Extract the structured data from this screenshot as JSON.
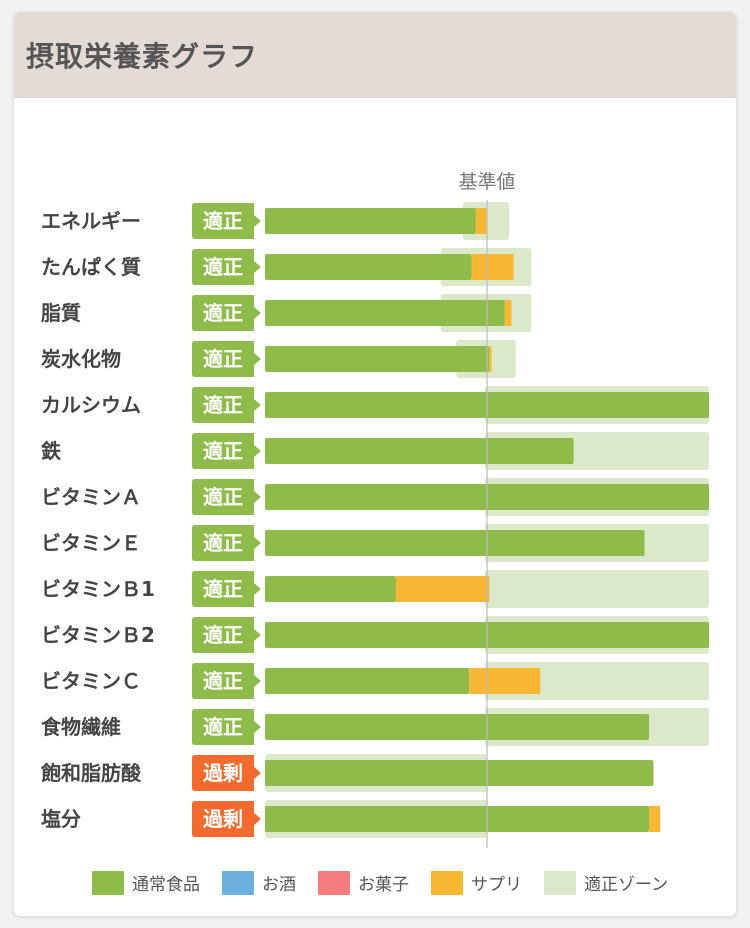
{
  "title": "摂取栄養素グラフ",
  "colors": {
    "normal": "#8fbb4a",
    "alcohol": "#6cb0e0",
    "snack": "#f47c7c",
    "supplement": "#f7b733",
    "zone": "#dbe8c9",
    "ok_badge": "#8fbb4a",
    "over_badge": "#f26a2e",
    "ref_line": "#bbbbbb"
  },
  "legend": [
    {
      "label": "通常食品",
      "color": "#8fbb4a"
    },
    {
      "label": "お酒",
      "color": "#6cb0e0"
    },
    {
      "label": "お菓子",
      "color": "#f47c7c"
    },
    {
      "label": "サプリ",
      "color": "#f7b733"
    },
    {
      "label": "適正ゾーン",
      "color": "#dbe8c9"
    }
  ],
  "chart_data": {
    "type": "bar",
    "orientation": "horizontal",
    "stacked": true,
    "reference_label": "基準値",
    "reference_value": 100,
    "x_max": 200,
    "categories": [
      "エネルギー",
      "たんぱく質",
      "脂質",
      "炭水化物",
      "カルシウム",
      "鉄",
      "ビタミンＡ",
      "ビタミンＥ",
      "ビタミンＢ1",
      "ビタミンＢ2",
      "ビタミンＣ",
      "食物繊維",
      "飽和脂肪酸",
      "塩分"
    ],
    "status": [
      "適正",
      "適正",
      "適正",
      "適正",
      "適正",
      "適正",
      "適正",
      "適正",
      "適正",
      "適正",
      "適正",
      "適正",
      "過剰",
      "過剰"
    ],
    "series": [
      {
        "name": "通常食品",
        "values": [
          95,
          93,
          108,
          101,
          200,
          139,
          200,
          171,
          59,
          200,
          92,
          173,
          175,
          173
        ]
      },
      {
        "name": "お酒",
        "values": [
          0,
          0,
          0,
          0,
          0,
          0,
          0,
          0,
          0,
          0,
          0,
          0,
          0,
          0
        ]
      },
      {
        "name": "お菓子",
        "values": [
          0,
          0,
          0,
          0,
          0,
          0,
          0,
          0,
          0,
          0,
          0,
          0,
          0,
          0
        ]
      },
      {
        "name": "サプリ",
        "values": [
          5,
          19,
          3,
          1,
          0,
          0,
          0,
          0,
          42,
          0,
          32,
          0,
          0,
          5
        ]
      }
    ],
    "zones": [
      [
        90,
        110
      ],
      [
        80,
        120
      ],
      [
        80,
        120
      ],
      [
        87,
        113
      ],
      [
        100,
        200
      ],
      [
        100,
        200
      ],
      [
        100,
        200
      ],
      [
        100,
        200
      ],
      [
        100,
        200
      ],
      [
        100,
        200
      ],
      [
        100,
        200
      ],
      [
        100,
        200
      ],
      [
        0,
        100
      ],
      [
        0,
        100
      ]
    ]
  }
}
